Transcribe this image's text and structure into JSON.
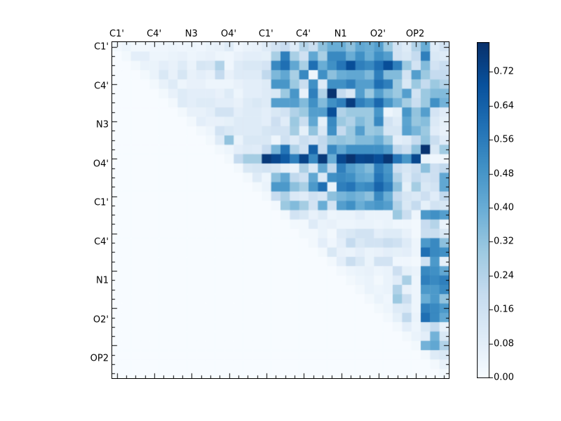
{
  "figure": {
    "background": "#ffffff"
  },
  "axes": {
    "top_labels": [
      "C1'",
      "C4'",
      "N3",
      "O4'",
      "C1'",
      "C4'",
      "N1",
      "O2'",
      "OP2"
    ],
    "left_labels": [
      "C1'",
      "C4'",
      "N3",
      "O4'",
      "C1'",
      "C4'",
      "N1",
      "O2'",
      "OP2"
    ]
  },
  "colorbar": {
    "tick_labels": [
      "0.00",
      "0.08",
      "0.16",
      "0.24",
      "0.32",
      "0.40",
      "0.48",
      "0.56",
      "0.64",
      "0.72"
    ],
    "tick_values": [
      0.0,
      0.08,
      0.16,
      0.24,
      0.32,
      0.4,
      0.48,
      0.56,
      0.64,
      0.72
    ]
  },
  "chart_data": {
    "type": "heatmap",
    "n": 36,
    "cells_per_label": 4,
    "x_labels": [
      "C1'",
      "C4'",
      "N3",
      "O4'",
      "C1'",
      "C4'",
      "N1",
      "O2'",
      "OP2"
    ],
    "y_labels": [
      "C1'",
      "C4'",
      "N3",
      "O4'",
      "C1'",
      "C4'",
      "N1",
      "O2'",
      "OP2"
    ],
    "vmin": 0.0,
    "vmax": 0.79,
    "colormap": "Blues",
    "colormap_stops": [
      [
        0.0,
        "#f7fbff"
      ],
      [
        0.125,
        "#deebf7"
      ],
      [
        0.25,
        "#c6dbef"
      ],
      [
        0.375,
        "#9ecae1"
      ],
      [
        0.5,
        "#6baed6"
      ],
      [
        0.625,
        "#4292c6"
      ],
      [
        0.75,
        "#2171b5"
      ],
      [
        0.875,
        "#08519c"
      ],
      [
        1.0,
        "#08306b"
      ]
    ],
    "grid": false,
    "legend_position": "right-colorbar",
    "matrix": [
      [
        0.02,
        0.04,
        0.02,
        0.02,
        0.03,
        0.03,
        0.04,
        0.03,
        0.04,
        0.03,
        0.05,
        0.06,
        0.1,
        0.03,
        0.05,
        0.06,
        0.1,
        0.15,
        0.19,
        0.1,
        0.24,
        0.18,
        0.33,
        0.4,
        0.4,
        0.33,
        0.42,
        0.4,
        0.45,
        0.3,
        0.15,
        0.1,
        0.25,
        0.4,
        0.1,
        0.15
      ],
      [
        0,
        0.02,
        0.08,
        0.08,
        0.04,
        0.04,
        0.05,
        0.06,
        0.04,
        0.05,
        0.06,
        0.04,
        0.03,
        0.06,
        0.08,
        0.08,
        0.07,
        0.27,
        0.55,
        0.27,
        0.16,
        0.42,
        0.27,
        0.52,
        0.52,
        0.4,
        0.5,
        0.4,
        0.5,
        0.45,
        0.15,
        0.12,
        0.2,
        0.55,
        0.12,
        0.1
      ],
      [
        0,
        0,
        0.02,
        0.05,
        0.05,
        0.08,
        0.06,
        0.1,
        0.05,
        0.13,
        0.12,
        0.25,
        0.03,
        0.1,
        0.12,
        0.12,
        0.14,
        0.52,
        0.6,
        0.42,
        0.27,
        0.6,
        0.4,
        0.5,
        0.58,
        0.7,
        0.55,
        0.52,
        0.6,
        0.7,
        0.55,
        0.3,
        0.15,
        0.35,
        0.15,
        0.18
      ],
      [
        0,
        0,
        0,
        0.02,
        0.05,
        0.12,
        0.06,
        0.13,
        0.06,
        0.08,
        0.06,
        0.2,
        0.06,
        0.1,
        0.1,
        0.1,
        0.21,
        0.36,
        0.42,
        0.27,
        0.52,
        0.04,
        0.5,
        0.33,
        0.4,
        0.42,
        0.42,
        0.36,
        0.55,
        0.35,
        0.35,
        0.15,
        0.45,
        0.3,
        0.2,
        0.2
      ],
      [
        0,
        0,
        0,
        0,
        0.02,
        0.06,
        0.1,
        0.04,
        0.06,
        0.06,
        0.04,
        0.04,
        0.04,
        0.06,
        0.08,
        0.08,
        0.1,
        0.48,
        0.48,
        0.3,
        0.18,
        0.5,
        0.1,
        0.5,
        0.5,
        0.55,
        0.45,
        0.45,
        0.6,
        0.55,
        0.3,
        0.12,
        0.3,
        0.2,
        0.3,
        0.25
      ],
      [
        0,
        0,
        0,
        0,
        0,
        0.02,
        0.06,
        0.1,
        0.08,
        0.08,
        0.08,
        0.06,
        0.1,
        0.04,
        0.08,
        0.08,
        0.1,
        0.12,
        0.3,
        0.48,
        0.06,
        0.55,
        0.25,
        0.78,
        0.2,
        0.12,
        0.45,
        0.3,
        0.45,
        0.35,
        0.3,
        0.45,
        0.15,
        0.3,
        0.35,
        0.35
      ],
      [
        0,
        0,
        0,
        0,
        0,
        0,
        0.02,
        0.1,
        0.08,
        0.1,
        0.1,
        0.08,
        0.08,
        0.06,
        0.1,
        0.12,
        0.1,
        0.45,
        0.45,
        0.45,
        0.35,
        0.5,
        0.35,
        0.5,
        0.55,
        0.75,
        0.55,
        0.5,
        0.62,
        0.48,
        0.38,
        0.28,
        0.18,
        0.3,
        0.5,
        0.38
      ],
      [
        0,
        0,
        0,
        0,
        0,
        0,
        0,
        0.02,
        0.06,
        0.06,
        0.08,
        0.15,
        0.15,
        0.08,
        0.1,
        0.1,
        0.08,
        0.12,
        0.15,
        0.25,
        0.3,
        0.45,
        0.45,
        0.7,
        0.25,
        0.3,
        0.3,
        0.3,
        0.48,
        0.04,
        0.07,
        0.48,
        0.32,
        0.45,
        0.14,
        0.09
      ],
      [
        0,
        0,
        0,
        0,
        0,
        0,
        0,
        0,
        0.02,
        0.08,
        0.06,
        0.06,
        0.07,
        0.1,
        0.1,
        0.1,
        0.08,
        0.17,
        0.09,
        0.3,
        0.18,
        0.42,
        0.07,
        0.52,
        0.3,
        0.25,
        0.35,
        0.3,
        0.52,
        0.15,
        0.1,
        0.43,
        0.31,
        0.34,
        0.11,
        0.07
      ],
      [
        0,
        0,
        0,
        0,
        0,
        0,
        0,
        0,
        0,
        0.02,
        0.04,
        0.15,
        0.12,
        0.1,
        0.1,
        0.1,
        0.13,
        0.15,
        0.15,
        0.28,
        0.07,
        0.32,
        0.12,
        0.5,
        0.2,
        0.3,
        0.45,
        0.3,
        0.32,
        0.13,
        0.13,
        0.44,
        0.37,
        0.3,
        0.09,
        0.06
      ],
      [
        0,
        0,
        0,
        0,
        0,
        0,
        0,
        0,
        0,
        0,
        0.02,
        0.1,
        0.32,
        0.05,
        0.12,
        0.12,
        0.12,
        0.04,
        0.16,
        0.1,
        0.18,
        0.14,
        0.21,
        0.3,
        0.32,
        0.3,
        0.35,
        0.35,
        0.4,
        0.3,
        0.08,
        0.1,
        0.2,
        0.32,
        0.18,
        0.09
      ],
      [
        0,
        0,
        0,
        0,
        0,
        0,
        0,
        0,
        0,
        0,
        0,
        0.02,
        0.04,
        0.08,
        0.1,
        0.09,
        0.19,
        0.37,
        0.58,
        0.25,
        0.16,
        0.64,
        0.2,
        0.52,
        0.42,
        0.5,
        0.5,
        0.5,
        0.5,
        0.45,
        0.22,
        0.17,
        0.33,
        0.78,
        0.12,
        0.29
      ],
      [
        0,
        0,
        0,
        0,
        0,
        0,
        0,
        0,
        0,
        0,
        0,
        0,
        0.02,
        0.2,
        0.28,
        0.28,
        0.76,
        0.72,
        0.66,
        0.55,
        0.73,
        0.52,
        0.76,
        0.4,
        0.72,
        0.78,
        0.72,
        0.73,
        0.7,
        0.77,
        0.58,
        0.48,
        0.72,
        0.05,
        0.03,
        0.03
      ],
      [
        0,
        0,
        0,
        0,
        0,
        0,
        0,
        0,
        0,
        0,
        0,
        0,
        0,
        0.02,
        0.12,
        0.13,
        0.15,
        0.13,
        0.07,
        0.05,
        0.26,
        0.11,
        0.42,
        0.21,
        0.55,
        0.45,
        0.4,
        0.35,
        0.55,
        0.48,
        0.17,
        0.13,
        0.17,
        0.33,
        0.17,
        0.21
      ],
      [
        0,
        0,
        0,
        0,
        0,
        0,
        0,
        0,
        0,
        0,
        0,
        0,
        0,
        0,
        0.02,
        0.1,
        0.04,
        0.33,
        0.42,
        0.21,
        0.16,
        0.42,
        0.11,
        0.5,
        0.52,
        0.5,
        0.42,
        0.4,
        0.58,
        0.5,
        0.25,
        0.11,
        0.2,
        0.15,
        0.17,
        0.42
      ],
      [
        0,
        0,
        0,
        0,
        0,
        0,
        0,
        0,
        0,
        0,
        0,
        0,
        0,
        0,
        0,
        0.02,
        0.05,
        0.47,
        0.47,
        0.33,
        0.27,
        0.47,
        0.6,
        0.05,
        0.55,
        0.58,
        0.5,
        0.52,
        0.63,
        0.55,
        0.33,
        0.07,
        0.28,
        0.12,
        0.15,
        0.42
      ],
      [
        0,
        0,
        0,
        0,
        0,
        0,
        0,
        0,
        0,
        0,
        0,
        0,
        0,
        0,
        0,
        0,
        0.02,
        0.19,
        0.26,
        0.11,
        0.09,
        0.16,
        0.13,
        0.33,
        0.37,
        0.4,
        0.37,
        0.33,
        0.52,
        0.4,
        0.2,
        0.13,
        0.11,
        0.17,
        0.09,
        0.21
      ],
      [
        0,
        0,
        0,
        0,
        0,
        0,
        0,
        0,
        0,
        0,
        0,
        0,
        0,
        0,
        0,
        0,
        0,
        0.02,
        0.3,
        0.35,
        0.28,
        0.15,
        0.4,
        0.15,
        0.45,
        0.5,
        0.4,
        0.45,
        0.48,
        0.45,
        0.25,
        0.12,
        0.2,
        0.07,
        0.15,
        0.13
      ],
      [
        0,
        0,
        0,
        0,
        0,
        0,
        0,
        0,
        0,
        0,
        0,
        0,
        0,
        0,
        0,
        0,
        0,
        0,
        0.02,
        0.15,
        0.12,
        0.06,
        0.1,
        0.04,
        0.05,
        0.05,
        0.08,
        0.05,
        0.05,
        0.05,
        0.3,
        0.18,
        0.04,
        0.47,
        0.5,
        0.45
      ],
      [
        0,
        0,
        0,
        0,
        0,
        0,
        0,
        0,
        0,
        0,
        0,
        0,
        0,
        0,
        0,
        0,
        0,
        0,
        0,
        0.02,
        0.02,
        0.1,
        0.05,
        0.06,
        0.04,
        0.04,
        0.05,
        0.05,
        0.04,
        0.05,
        0.03,
        0.03,
        0.02,
        0.19,
        0.24,
        0.05
      ],
      [
        0,
        0,
        0,
        0,
        0,
        0,
        0,
        0,
        0,
        0,
        0,
        0,
        0,
        0,
        0,
        0,
        0,
        0,
        0,
        0,
        0.02,
        0.02,
        0.05,
        0.02,
        0.1,
        0.12,
        0.15,
        0.15,
        0.08,
        0.1,
        0.1,
        0.06,
        0.02,
        0.18,
        0.18,
        0.12
      ],
      [
        0,
        0,
        0,
        0,
        0,
        0,
        0,
        0,
        0,
        0,
        0,
        0,
        0,
        0,
        0,
        0,
        0,
        0,
        0,
        0,
        0,
        0.02,
        0.08,
        0.03,
        0.08,
        0.2,
        0.12,
        0.15,
        0.15,
        0.18,
        0.16,
        0.1,
        0.04,
        0.47,
        0.52,
        0.33
      ],
      [
        0,
        0,
        0,
        0,
        0,
        0,
        0,
        0,
        0,
        0,
        0,
        0,
        0,
        0,
        0,
        0,
        0,
        0,
        0,
        0,
        0,
        0,
        0.02,
        0.12,
        0.06,
        0.05,
        0.08,
        0.05,
        0.06,
        0.08,
        0.07,
        0.08,
        0.04,
        0.6,
        0.52,
        0.5
      ],
      [
        0,
        0,
        0,
        0,
        0,
        0,
        0,
        0,
        0,
        0,
        0,
        0,
        0,
        0,
        0,
        0,
        0,
        0,
        0,
        0,
        0,
        0,
        0,
        0.02,
        0.08,
        0.18,
        0.12,
        0.05,
        0.15,
        0.15,
        0.03,
        0.03,
        0.02,
        0.16,
        0.47,
        0.07
      ],
      [
        0,
        0,
        0,
        0,
        0,
        0,
        0,
        0,
        0,
        0,
        0,
        0,
        0,
        0,
        0,
        0,
        0,
        0,
        0,
        0,
        0,
        0,
        0,
        0,
        0.02,
        0.04,
        0.05,
        0.06,
        0.04,
        0.05,
        0.17,
        0.07,
        0.05,
        0.52,
        0.5,
        0.42
      ],
      [
        0,
        0,
        0,
        0,
        0,
        0,
        0,
        0,
        0,
        0,
        0,
        0,
        0,
        0,
        0,
        0,
        0,
        0,
        0,
        0,
        0,
        0,
        0,
        0,
        0,
        0.02,
        0.04,
        0.05,
        0.02,
        0.05,
        0.09,
        0.27,
        0.04,
        0.55,
        0.52,
        0.55
      ],
      [
        0,
        0,
        0,
        0,
        0,
        0,
        0,
        0,
        0,
        0,
        0,
        0,
        0,
        0,
        0,
        0,
        0,
        0,
        0,
        0,
        0,
        0,
        0,
        0,
        0,
        0,
        0.02,
        0.05,
        0.04,
        0.05,
        0.25,
        0.06,
        0.04,
        0.47,
        0.47,
        0.52
      ],
      [
        0,
        0,
        0,
        0,
        0,
        0,
        0,
        0,
        0,
        0,
        0,
        0,
        0,
        0,
        0,
        0,
        0,
        0,
        0,
        0,
        0,
        0,
        0,
        0,
        0,
        0,
        0,
        0.02,
        0.05,
        0.03,
        0.3,
        0.18,
        0.04,
        0.4,
        0.47,
        0.32
      ],
      [
        0,
        0,
        0,
        0,
        0,
        0,
        0,
        0,
        0,
        0,
        0,
        0,
        0,
        0,
        0,
        0,
        0,
        0,
        0,
        0,
        0,
        0,
        0,
        0,
        0,
        0,
        0,
        0,
        0.02,
        0.04,
        0.1,
        0.11,
        0.04,
        0.55,
        0.52,
        0.47
      ],
      [
        0,
        0,
        0,
        0,
        0,
        0,
        0,
        0,
        0,
        0,
        0,
        0,
        0,
        0,
        0,
        0,
        0,
        0,
        0,
        0,
        0,
        0,
        0,
        0,
        0,
        0,
        0,
        0,
        0,
        0.02,
        0.07,
        0.21,
        0.05,
        0.6,
        0.52,
        0.42
      ],
      [
        0,
        0,
        0,
        0,
        0,
        0,
        0,
        0,
        0,
        0,
        0,
        0,
        0,
        0,
        0,
        0,
        0,
        0,
        0,
        0,
        0,
        0,
        0,
        0,
        0,
        0,
        0,
        0,
        0,
        0,
        0.02,
        0.08,
        0.04,
        0.12,
        0.2,
        0.06
      ],
      [
        0,
        0,
        0,
        0,
        0,
        0,
        0,
        0,
        0,
        0,
        0,
        0,
        0,
        0,
        0,
        0,
        0,
        0,
        0,
        0,
        0,
        0,
        0,
        0,
        0,
        0,
        0,
        0,
        0,
        0,
        0,
        0.02,
        0.05,
        0.08,
        0.38,
        0.12
      ],
      [
        0,
        0,
        0,
        0,
        0,
        0,
        0,
        0,
        0,
        0,
        0,
        0,
        0,
        0,
        0,
        0,
        0,
        0,
        0,
        0,
        0,
        0,
        0,
        0,
        0,
        0,
        0,
        0,
        0,
        0,
        0,
        0,
        0.02,
        0.38,
        0.42,
        0.25
      ],
      [
        0,
        0,
        0,
        0,
        0,
        0,
        0,
        0,
        0,
        0,
        0,
        0,
        0,
        0,
        0,
        0,
        0,
        0,
        0,
        0,
        0,
        0,
        0,
        0,
        0,
        0,
        0,
        0,
        0,
        0,
        0,
        0,
        0,
        0.02,
        0.1,
        0.12
      ],
      [
        0,
        0,
        0,
        0,
        0,
        0,
        0,
        0,
        0,
        0,
        0,
        0,
        0,
        0,
        0,
        0,
        0,
        0,
        0,
        0,
        0,
        0,
        0,
        0,
        0,
        0,
        0,
        0,
        0,
        0,
        0,
        0,
        0,
        0,
        0.02,
        0.06
      ],
      [
        0,
        0,
        0,
        0,
        0,
        0,
        0,
        0,
        0,
        0,
        0,
        0,
        0,
        0,
        0,
        0,
        0,
        0,
        0,
        0,
        0,
        0,
        0,
        0,
        0,
        0,
        0,
        0,
        0,
        0,
        0,
        0,
        0,
        0,
        0,
        0.02
      ]
    ]
  }
}
